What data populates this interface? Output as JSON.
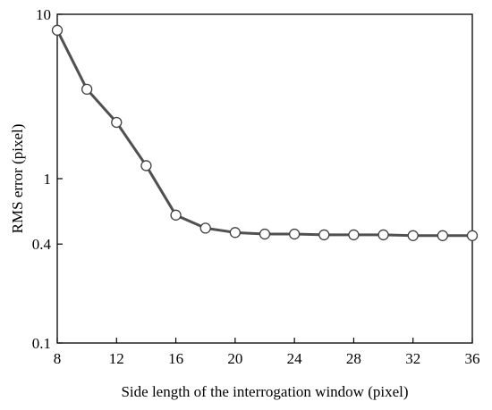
{
  "chart_data": {
    "type": "line",
    "xlabel": "Side length of the interrogation window (pixel)",
    "ylabel": "RMS error (pixel)",
    "xlim": [
      8,
      36
    ],
    "ylim": [
      0.1,
      10
    ],
    "yscale": "log",
    "grid": false,
    "x_ticks": [
      8,
      12,
      16,
      20,
      24,
      28,
      32,
      36
    ],
    "x_tick_labels": [
      "8",
      "12",
      "16",
      "20",
      "24",
      "28",
      "32",
      "36"
    ],
    "y_ticks": [
      0.1,
      0.4,
      1,
      10
    ],
    "y_tick_labels": [
      "0.1",
      "0.4",
      "1",
      "10"
    ],
    "series": [
      {
        "x": [
          8,
          10,
          12,
          14,
          16,
          18,
          20,
          22,
          24,
          26,
          28,
          30,
          32,
          34,
          36
        ],
        "y": [
          8.0,
          3.5,
          2.2,
          1.2,
          0.6,
          0.5,
          0.47,
          0.46,
          0.46,
          0.455,
          0.455,
          0.455,
          0.45,
          0.45,
          0.45
        ],
        "line_color": "#505050",
        "marker": "circle",
        "marker_fill": "#ffffff",
        "marker_edge": "#404040"
      }
    ]
  }
}
